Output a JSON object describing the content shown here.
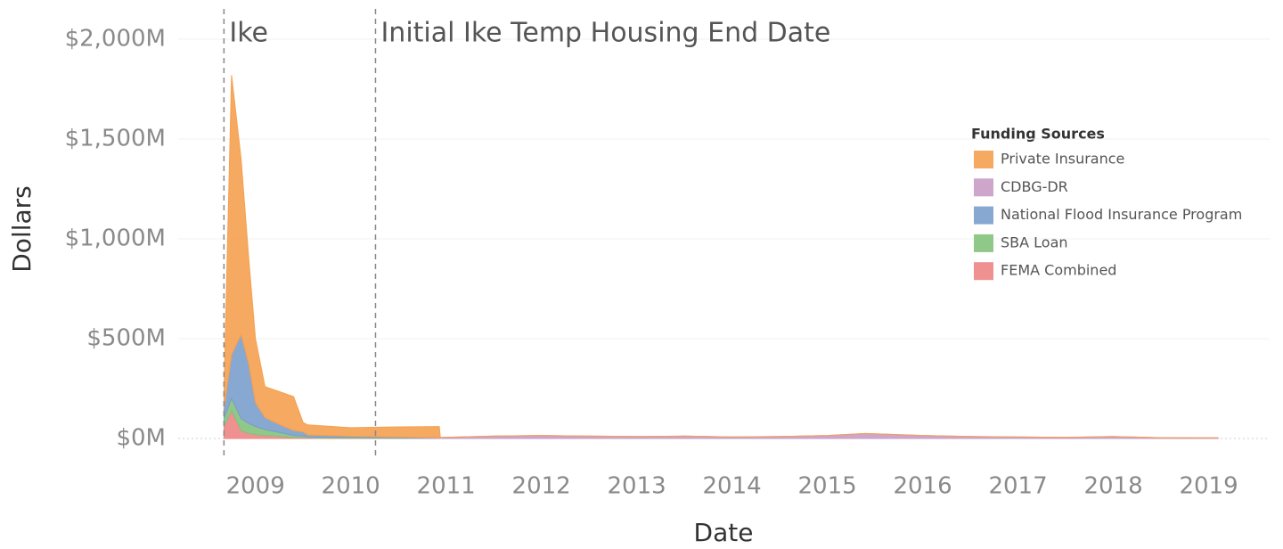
{
  "chart_data": {
    "type": "area",
    "stacked": true,
    "x_label": "Date",
    "y_label": "Dollars",
    "legend_title": "Funding Sources",
    "legend": "right",
    "grid": true,
    "x": [
      2008.67,
      2008.75,
      2008.85,
      2008.93,
      2009.0,
      2009.1,
      2009.25,
      2009.4,
      2009.5,
      2009.55,
      2010.0,
      2010.5,
      2010.93,
      2010.94,
      2011.5,
      2012.0,
      2012.5,
      2013.0,
      2013.5,
      2014.0,
      2014.5,
      2015.0,
      2015.4,
      2016.0,
      2016.5,
      2017.0,
      2017.5,
      2018.0,
      2018.5,
      2019.1
    ],
    "series": [
      {
        "name": "Private Insurance",
        "color": "#f5a04f",
        "values": [
          100,
          1400,
          880,
          525,
          320,
          155,
          165,
          170,
          47,
          50,
          43,
          51,
          55,
          0,
          0,
          0,
          0,
          0,
          0,
          0,
          0,
          0,
          0,
          0,
          0,
          0,
          0,
          0,
          0,
          0
        ]
      },
      {
        "name": "CDBG-DR",
        "color": "#c99cc6",
        "values": [
          0,
          0,
          0,
          0,
          0,
          0,
          0,
          0,
          0,
          0,
          0,
          0,
          5,
          5,
          12,
          15,
          12,
          10,
          12,
          8,
          10,
          15,
          25,
          15,
          10,
          8,
          6,
          10,
          4,
          3
        ]
      },
      {
        "name": "National Flood Insurance Program",
        "color": "#7a9ecb",
        "values": [
          50,
          220,
          420,
          300,
          120,
          60,
          40,
          25,
          20,
          10,
          6,
          4,
          0,
          0,
          0,
          0,
          0,
          0,
          0,
          0,
          0,
          0,
          0,
          0,
          0,
          0,
          0,
          0,
          0,
          0
        ]
      },
      {
        "name": "SBA Loan",
        "color": "#84c27c",
        "values": [
          40,
          60,
          60,
          50,
          40,
          30,
          20,
          10,
          8,
          5,
          3,
          2,
          0,
          0,
          0,
          0,
          0,
          0,
          0,
          0,
          0,
          0,
          0,
          0,
          0,
          0,
          0,
          0,
          0,
          0
        ]
      },
      {
        "name": "FEMA Combined",
        "color": "#ee8585",
        "values": [
          60,
          140,
          40,
          25,
          20,
          15,
          10,
          5,
          5,
          3,
          2,
          1,
          0,
          0,
          0,
          0,
          0,
          0,
          0,
          0,
          0,
          0,
          0,
          0,
          0,
          0,
          0,
          0,
          0,
          0
        ]
      }
    ],
    "xlim": [
      2008.19,
      2019.64
    ],
    "xticks": [
      2009,
      2010,
      2011,
      2012,
      2013,
      2014,
      2015,
      2016,
      2017,
      2018,
      2019
    ],
    "ylim": [
      0,
      2000
    ],
    "yticks": [
      {
        "value": 0,
        "label": "$0M"
      },
      {
        "value": 500,
        "label": "$500M"
      },
      {
        "value": 1000,
        "label": "$1,000M"
      },
      {
        "value": 1500,
        "label": "$1,500M"
      },
      {
        "value": 2000,
        "label": "$2,000M"
      }
    ],
    "annotations": [
      {
        "text": "Ike",
        "x": 2008.67
      },
      {
        "text": "Initial Ike Temp Housing End Date",
        "x": 2010.26
      }
    ]
  }
}
